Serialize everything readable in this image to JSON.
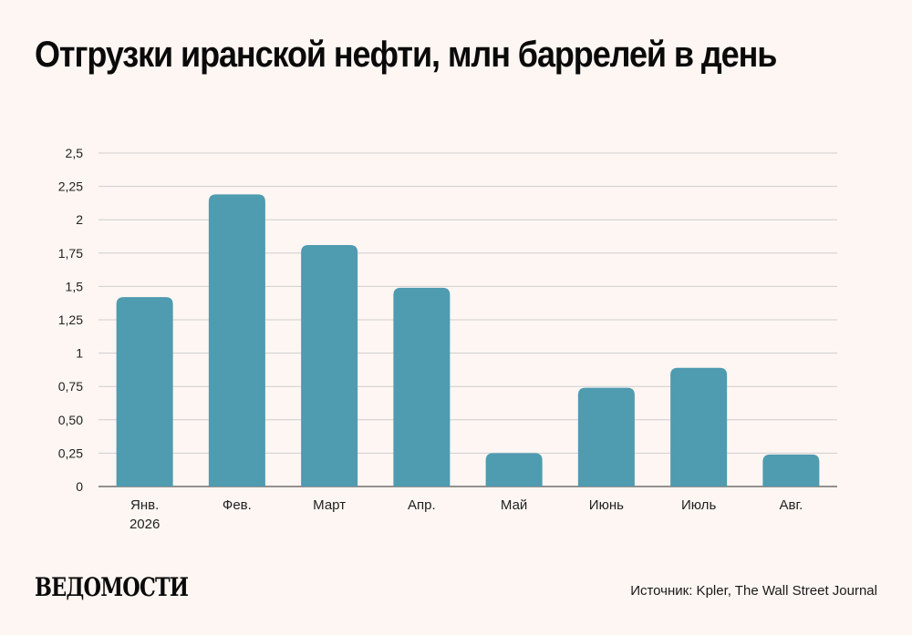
{
  "title": "Отгрузки иранской нефти, млн баррелей в день",
  "logo": "ВЕДОМОСТИ",
  "source": "Источник: Kpler, The Wall Street Journal",
  "colors": {
    "bar": "#4f9bb0",
    "background": "#fdf6f2",
    "grid": "#cfcfcf"
  },
  "chart_data": {
    "type": "bar",
    "categories": [
      [
        "Янв.",
        "2026"
      ],
      [
        "Фев."
      ],
      [
        "Март"
      ],
      [
        "Апр."
      ],
      [
        "Май"
      ],
      [
        "Июнь"
      ],
      [
        "Июль"
      ],
      [
        "Авг."
      ]
    ],
    "values": [
      1.42,
      2.19,
      1.81,
      1.49,
      0.25,
      0.74,
      0.89,
      0.24
    ],
    "yticks": [
      "0",
      "0,25",
      "0,50",
      "0,75",
      "1",
      "1,25",
      "1,5",
      "1,75",
      "2",
      "2,25",
      "2,5"
    ],
    "ylim": [
      0,
      2.5
    ],
    "grid": true
  }
}
